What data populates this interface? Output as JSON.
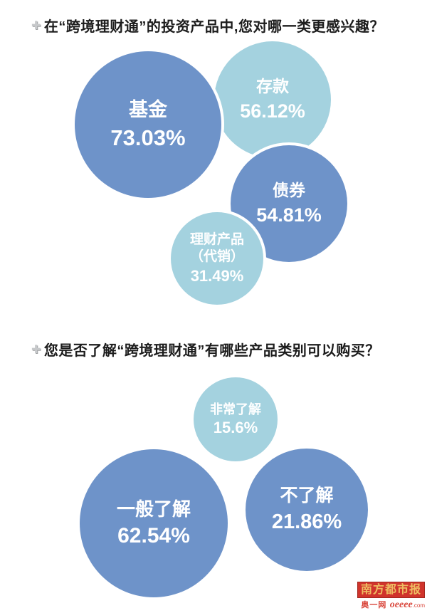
{
  "colors": {
    "dark_blue": "#6e93c9",
    "light_blue": "#a4d2df",
    "title_text": "#1c1c1c",
    "logo_bg": "#d0342c",
    "logo_gold": "#eebd62",
    "logo_red": "#d9453a"
  },
  "q1": {
    "title": "在“跨境理财通”的投资产品中,您对哪一类更感兴趣？",
    "bubbles": [
      {
        "label": "基金",
        "value": "73.03%"
      },
      {
        "label": "存款",
        "value": "56.12%"
      },
      {
        "label": "债券",
        "value": "54.81%"
      },
      {
        "label": "理财产品\n（代销）",
        "value": "31.49%"
      }
    ]
  },
  "q2": {
    "title": "您是否了解“跨境理财通”有哪些产品类别可以购买？",
    "bubbles": [
      {
        "label": "非常了解",
        "value": "15.6%"
      },
      {
        "label": "一般了解",
        "value": "62.54%"
      },
      {
        "label": "不了解",
        "value": "21.86%"
      }
    ]
  },
  "logo": {
    "paper": "南方都市报",
    "site_cn": "奥一网",
    "site_en": "oeeee",
    "tld": ".com"
  },
  "chart_data": [
    {
      "type": "bubble",
      "title": "在“跨境理财通”的投资产品中,您对哪一类更感兴趣？",
      "items": [
        {
          "label": "基金",
          "value_pct": 73.03,
          "color": "#6e93c9"
        },
        {
          "label": "存款",
          "value_pct": 56.12,
          "color": "#a4d2df"
        },
        {
          "label": "债券",
          "value_pct": 54.81,
          "color": "#6e93c9"
        },
        {
          "label": "理财产品（代销）",
          "value_pct": 31.49,
          "color": "#a4d2df"
        }
      ],
      "legend": "none",
      "notes": "bubble area scales with percentage; white gaps separate overlapping bubbles"
    },
    {
      "type": "bubble",
      "title": "您是否了解“跨境理财通”有哪些产品类别可以购买？",
      "items": [
        {
          "label": "非常了解",
          "value_pct": 15.6,
          "color": "#a4d2df"
        },
        {
          "label": "一般了解",
          "value_pct": 62.54,
          "color": "#6e93c9"
        },
        {
          "label": "不了解",
          "value_pct": 21.86,
          "color": "#6e93c9"
        }
      ],
      "legend": "none",
      "notes": "bubble area scales with percentage"
    }
  ]
}
